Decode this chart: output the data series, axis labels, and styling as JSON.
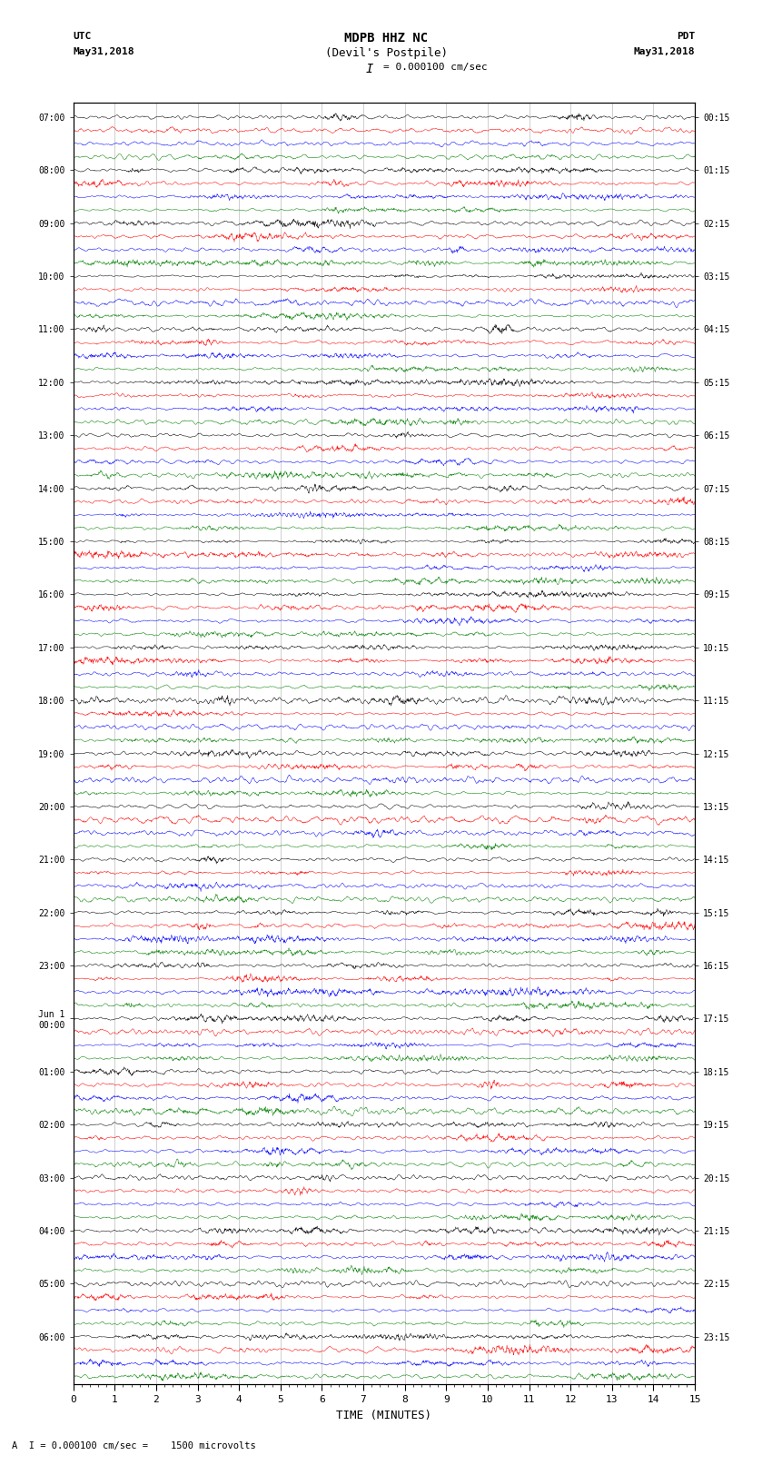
{
  "title_line1": "MDPB HHZ NC",
  "title_line2": "(Devil's Postpile)",
  "scale_text": "= 0.000100 cm/sec",
  "utc_label": "UTC",
  "pdt_label": "PDT",
  "date_left": "May31,2018",
  "date_right": "May31,2018",
  "xlabel": "TIME (MINUTES)",
  "footer_text": "A  I = 0.000100 cm/sec =    1500 microvolts",
  "utc_times_labeled": [
    "07:00",
    "08:00",
    "09:00",
    "10:00",
    "11:00",
    "12:00",
    "13:00",
    "14:00",
    "15:00",
    "16:00",
    "17:00",
    "18:00",
    "19:00",
    "20:00",
    "21:00",
    "22:00",
    "23:00",
    "Jun 1\n00:00",
    "01:00",
    "02:00",
    "03:00",
    "04:00",
    "05:00",
    "06:00"
  ],
  "pdt_times_labeled": [
    "00:15",
    "01:15",
    "02:15",
    "03:15",
    "04:15",
    "05:15",
    "06:15",
    "07:15",
    "08:15",
    "09:15",
    "10:15",
    "11:15",
    "12:15",
    "13:15",
    "14:15",
    "15:15",
    "16:15",
    "17:15",
    "18:15",
    "19:15",
    "20:15",
    "21:15",
    "22:15",
    "23:15"
  ],
  "n_hours": 24,
  "traces_per_hour": 4,
  "n_cols": 1800,
  "xmin": 0,
  "xmax": 15,
  "colors_cycle": [
    "black",
    "red",
    "blue",
    "green"
  ],
  "background_color": "white",
  "trace_linewidth": 0.35,
  "xticks": [
    0,
    1,
    2,
    3,
    4,
    5,
    6,
    7,
    8,
    9,
    10,
    11,
    12,
    13,
    14,
    15
  ],
  "amplitude_scale": 0.42,
  "grid_color": "#888888",
  "grid_linewidth": 0.4,
  "spine_linewidth": 0.8
}
